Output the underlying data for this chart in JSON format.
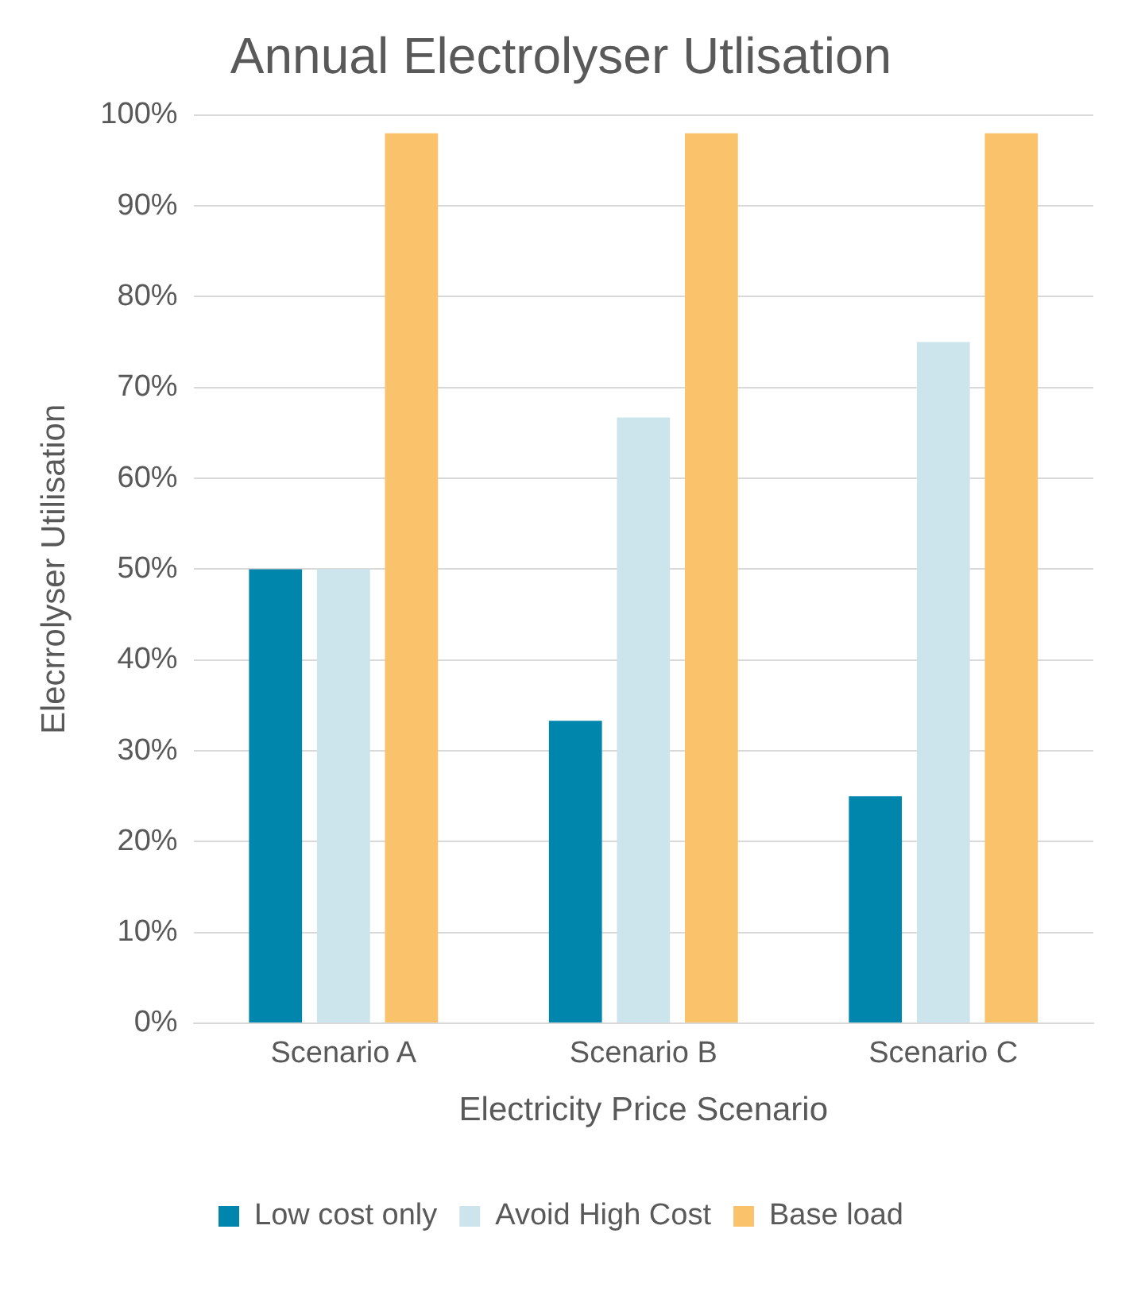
{
  "chart_data": {
    "type": "bar",
    "title": "Annual Electrolyser Utlisation",
    "xlabel": "Electricity Price Scenario",
    "ylabel": "Elecrrolyser Utilisation",
    "categories": [
      "Scenario A",
      "Scenario B",
      "Scenario C"
    ],
    "series": [
      {
        "name": "Low cost only",
        "color": "#0085ad",
        "values": [
          50,
          33.3,
          25
        ]
      },
      {
        "name": "Avoid High Cost",
        "color": "#cce5ec",
        "values": [
          50,
          66.7,
          75
        ]
      },
      {
        "name": "Base load",
        "color": "#fac26a",
        "values": [
          98,
          98,
          98
        ]
      }
    ],
    "ylim": [
      0,
      100
    ],
    "yticks": [
      {
        "value": 0,
        "label": "0%"
      },
      {
        "value": 10,
        "label": "10%"
      },
      {
        "value": 20,
        "label": "20%"
      },
      {
        "value": 30,
        "label": "30%"
      },
      {
        "value": 40,
        "label": "40%"
      },
      {
        "value": 50,
        "label": "50%"
      },
      {
        "value": 60,
        "label": "60%"
      },
      {
        "value": 70,
        "label": "70%"
      },
      {
        "value": 80,
        "label": "80%"
      },
      {
        "value": 90,
        "label": "90%"
      },
      {
        "value": 100,
        "label": "100%"
      }
    ],
    "grid": "y",
    "legend": "bottom"
  }
}
